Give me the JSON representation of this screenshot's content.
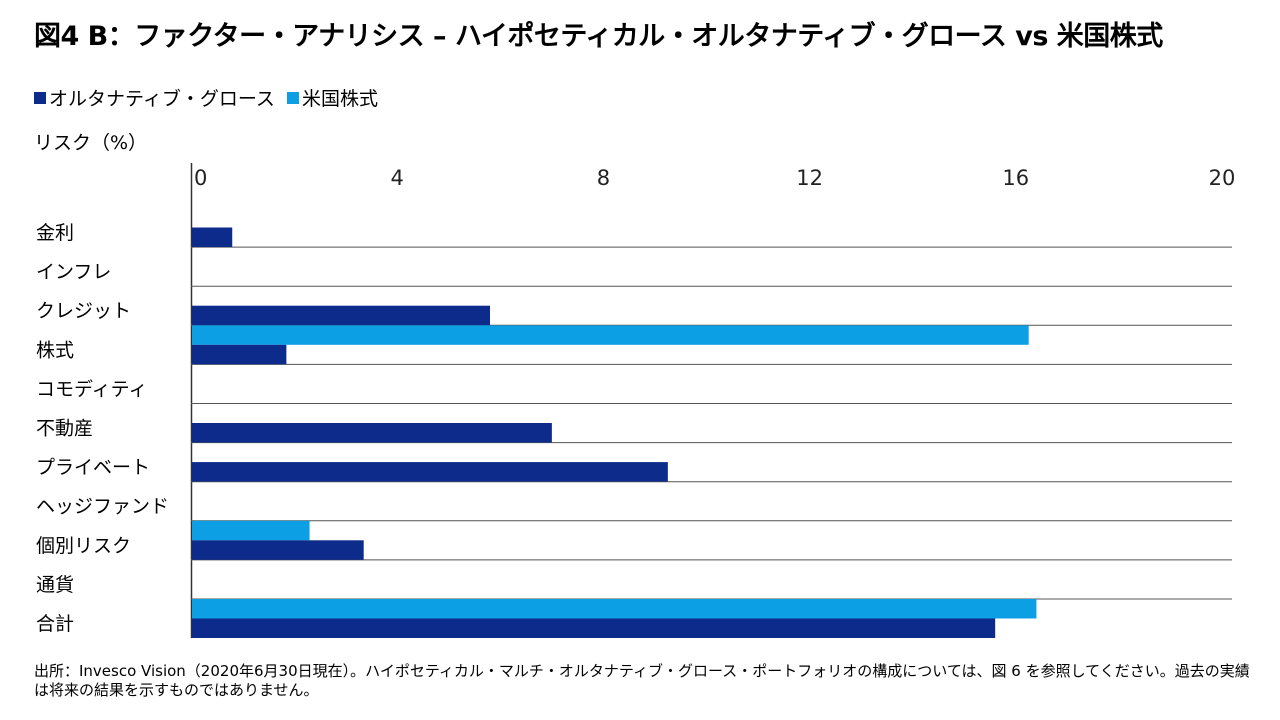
{
  "title": "図4 B：ファクター・アナリシス – ハイポセティカル・オルタナティブ・グロース vs 米国株式",
  "source_note": "出所：Invesco Vision（2020年6月30日現在）。ハイポセティカル・マルチ・オルタナティブ・グロース・ポートフォリオの構成については、図 6 を参照してください。過去の実績は将来の結果を示すものではありません。",
  "colors": {
    "alt_growth": "#0c2b8a",
    "us_equity": "#0c9fe3",
    "gridline": "#555555"
  },
  "chart_data": {
    "type": "bar",
    "orientation": "horizontal",
    "title": "図4 B：ファクター・アナリシス – ハイポセティカル・オルタナティブ・グロース vs 米国株式",
    "xlabel": "リスク（%）",
    "xlim": [
      0,
      20
    ],
    "xticks": [
      "0",
      "4",
      "8",
      "12",
      "16",
      "20"
    ],
    "legend_position": "top-left",
    "categories": [
      "金利",
      "インフレ",
      "クレジット",
      "株式",
      "コモディティ",
      "不動産",
      "プライベート",
      "ヘッジファンド",
      "個別リスク",
      "通貨",
      "合計"
    ],
    "series": [
      {
        "name": "オルタナティブ・グロース",
        "color": "#0c2b8a",
        "values": [
          0.8,
          0,
          5.8,
          1.85,
          0,
          7.0,
          9.25,
          0,
          3.35,
          0,
          15.6
        ]
      },
      {
        "name": "米国株式",
        "color": "#0c9fe3",
        "values": [
          0,
          0,
          0,
          16.25,
          0,
          0,
          0,
          0,
          2.3,
          0,
          16.4
        ]
      }
    ]
  }
}
